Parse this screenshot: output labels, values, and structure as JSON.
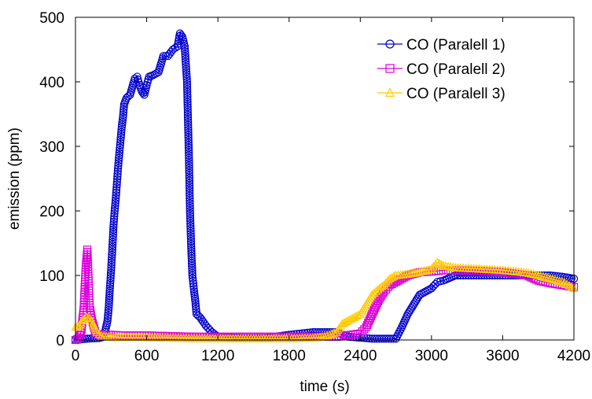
{
  "chart_data": {
    "type": "line",
    "title": "",
    "xlabel": "time (s)",
    "ylabel": "emission (ppm)",
    "xlim": [
      0,
      4200
    ],
    "ylim": [
      0,
      500
    ],
    "xticks": [
      0,
      600,
      1200,
      1800,
      2400,
      3000,
      3600,
      4200
    ],
    "yticks": [
      0,
      100,
      200,
      300,
      400,
      500
    ],
    "xtick_labels": [
      "0",
      "600",
      "1200",
      "1800",
      "2400",
      "3000",
      "3600",
      "4200"
    ],
    "ytick_labels": [
      "0",
      "100",
      "200",
      "300",
      "400",
      "500"
    ],
    "grid": false,
    "legend_position": "top-right",
    "series": [
      {
        "name": "CO (Paralell 1)",
        "color": "#0000cc",
        "marker": "circle",
        "points": [
          [
            0,
            0
          ],
          [
            100,
            2
          ],
          [
            200,
            3
          ],
          [
            240,
            5
          ],
          [
            270,
            30
          ],
          [
            280,
            50
          ],
          [
            290,
            80
          ],
          [
            300,
            108
          ],
          [
            310,
            140
          ],
          [
            320,
            175
          ],
          [
            330,
            200
          ],
          [
            340,
            220
          ],
          [
            350,
            245
          ],
          [
            360,
            270
          ],
          [
            370,
            290
          ],
          [
            380,
            310
          ],
          [
            390,
            330
          ],
          [
            400,
            345
          ],
          [
            410,
            365
          ],
          [
            430,
            375
          ],
          [
            460,
            380
          ],
          [
            500,
            405
          ],
          [
            520,
            408
          ],
          [
            540,
            395
          ],
          [
            560,
            385
          ],
          [
            580,
            380
          ],
          [
            600,
            395
          ],
          [
            620,
            408
          ],
          [
            650,
            410
          ],
          [
            700,
            415
          ],
          [
            740,
            440
          ],
          [
            780,
            440
          ],
          [
            820,
            450
          ],
          [
            860,
            455
          ],
          [
            880,
            475
          ],
          [
            900,
            470
          ],
          [
            920,
            455
          ],
          [
            940,
            400
          ],
          [
            955,
            290
          ],
          [
            965,
            200
          ],
          [
            975,
            145
          ],
          [
            985,
            100
          ],
          [
            1000,
            75
          ],
          [
            1010,
            60
          ],
          [
            1020,
            40
          ],
          [
            1050,
            35
          ],
          [
            1100,
            22
          ],
          [
            1150,
            12
          ],
          [
            1200,
            5
          ],
          [
            1400,
            3
          ],
          [
            1600,
            3
          ],
          [
            1800,
            8
          ],
          [
            2000,
            12
          ],
          [
            2100,
            12
          ],
          [
            2200,
            12
          ],
          [
            2300,
            5
          ],
          [
            2500,
            2
          ],
          [
            2600,
            2
          ],
          [
            2700,
            2
          ],
          [
            2750,
            20
          ],
          [
            2800,
            40
          ],
          [
            2850,
            55
          ],
          [
            2900,
            70
          ],
          [
            2950,
            75
          ],
          [
            3000,
            80
          ],
          [
            3050,
            90
          ],
          [
            3100,
            92
          ],
          [
            3150,
            96
          ],
          [
            3200,
            100
          ],
          [
            3400,
            100
          ],
          [
            3600,
            100
          ],
          [
            3800,
            100
          ],
          [
            4000,
            100
          ],
          [
            4100,
            98
          ],
          [
            4200,
            95
          ]
        ]
      },
      {
        "name": "CO (Paralell 2)",
        "color": "#dd00dd",
        "marker": "square",
        "points": [
          [
            0,
            0
          ],
          [
            30,
            3
          ],
          [
            50,
            15
          ],
          [
            70,
            50
          ],
          [
            80,
            90
          ],
          [
            90,
            120
          ],
          [
            100,
            140
          ],
          [
            110,
            95
          ],
          [
            120,
            50
          ],
          [
            140,
            30
          ],
          [
            170,
            10
          ],
          [
            200,
            8
          ],
          [
            300,
            8
          ],
          [
            400,
            7
          ],
          [
            600,
            7
          ],
          [
            800,
            6
          ],
          [
            1000,
            5
          ],
          [
            1200,
            5
          ],
          [
            1400,
            5
          ],
          [
            1600,
            5
          ],
          [
            1800,
            5
          ],
          [
            2000,
            5
          ],
          [
            2200,
            5
          ],
          [
            2400,
            10
          ],
          [
            2450,
            20
          ],
          [
            2500,
            40
          ],
          [
            2550,
            60
          ],
          [
            2600,
            75
          ],
          [
            2650,
            85
          ],
          [
            2700,
            90
          ],
          [
            2750,
            95
          ],
          [
            2800,
            100
          ],
          [
            2900,
            105
          ],
          [
            3000,
            106
          ],
          [
            3100,
            108
          ],
          [
            3200,
            108
          ],
          [
            3400,
            107
          ],
          [
            3600,
            105
          ],
          [
            3800,
            100
          ],
          [
            3900,
            92
          ],
          [
            4000,
            88
          ],
          [
            4100,
            85
          ],
          [
            4200,
            82
          ]
        ]
      },
      {
        "name": "CO (Paralell 3)",
        "color": "#ffcc00",
        "marker": "triangle",
        "points": [
          [
            0,
            20
          ],
          [
            30,
            22
          ],
          [
            60,
            30
          ],
          [
            90,
            35
          ],
          [
            120,
            33
          ],
          [
            150,
            25
          ],
          [
            180,
            12
          ],
          [
            220,
            6
          ],
          [
            300,
            4
          ],
          [
            500,
            4
          ],
          [
            800,
            3
          ],
          [
            1000,
            2
          ],
          [
            1200,
            2
          ],
          [
            1500,
            2
          ],
          [
            1800,
            2
          ],
          [
            2000,
            3
          ],
          [
            2100,
            5
          ],
          [
            2200,
            12
          ],
          [
            2250,
            25
          ],
          [
            2300,
            30
          ],
          [
            2350,
            35
          ],
          [
            2400,
            40
          ],
          [
            2450,
            55
          ],
          [
            2500,
            70
          ],
          [
            2550,
            78
          ],
          [
            2600,
            85
          ],
          [
            2650,
            95
          ],
          [
            2700,
            100
          ],
          [
            2800,
            102
          ],
          [
            2900,
            105
          ],
          [
            3000,
            110
          ],
          [
            3050,
            120
          ],
          [
            3100,
            115
          ],
          [
            3200,
            112
          ],
          [
            3400,
            110
          ],
          [
            3600,
            108
          ],
          [
            3800,
            104
          ],
          [
            3900,
            100
          ],
          [
            4000,
            95
          ],
          [
            4100,
            90
          ],
          [
            4200,
            80
          ]
        ]
      }
    ]
  }
}
